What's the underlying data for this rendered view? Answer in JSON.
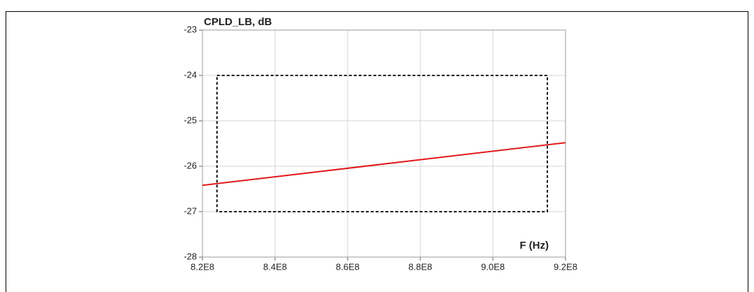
{
  "chart_data": {
    "type": "line",
    "y_label": "CPLD_LB, dB",
    "x_label": "F (Hz)",
    "x": [
      820000000,
      920000000
    ],
    "values": [
      -26.42,
      -25.48
    ],
    "color": "#e0191b",
    "limit_box": {
      "x": [
        824000000,
        915000000
      ],
      "y": [
        -27,
        -24
      ]
    },
    "xlim": [
      820000000,
      920000000
    ],
    "xticks": [
      {
        "value": 820000000,
        "label": "8.2E8"
      },
      {
        "value": 840000000,
        "label": "8.4E8"
      },
      {
        "value": 860000000,
        "label": "8.6E8"
      },
      {
        "value": 880000000,
        "label": "8.8E8"
      },
      {
        "value": 900000000,
        "label": "9.0E8"
      },
      {
        "value": 920000000,
        "label": "9.2E8"
      }
    ],
    "ylim": [
      -28,
      -23
    ],
    "yticks": [
      -28,
      -27,
      -26,
      -25,
      -24,
      -23
    ],
    "grid": true
  }
}
